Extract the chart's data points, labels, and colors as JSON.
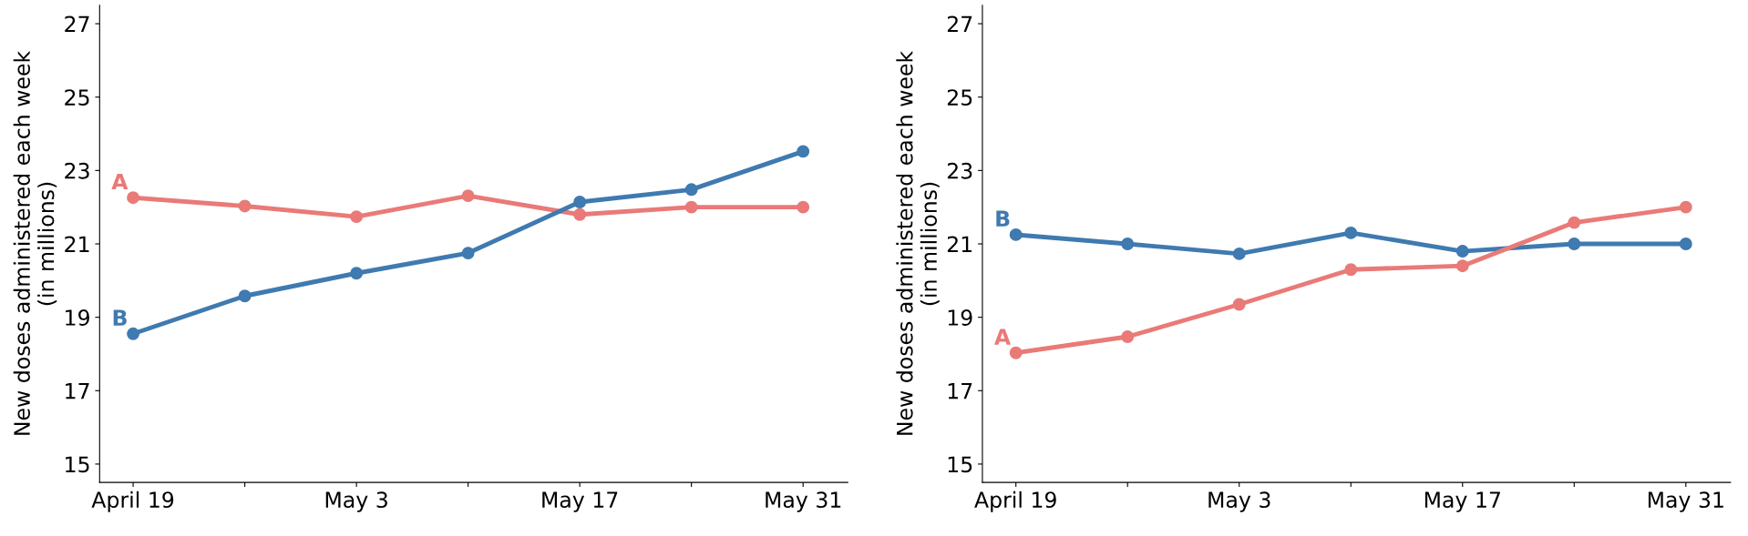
{
  "chart_data": [
    {
      "type": "line",
      "ylabel": "New doses administered each week\n(in millions)",
      "categories": [
        "April 19",
        null,
        "May 3",
        null,
        "May 17",
        null,
        "May 31"
      ],
      "ylim": [
        14.5,
        27.5
      ],
      "yticks": [
        15,
        17,
        19,
        21,
        23,
        25,
        27
      ],
      "marker": "circle",
      "grid": false,
      "legend": false,
      "series": [
        {
          "name": "A",
          "color": "#e97a78",
          "values": [
            22.26,
            22.03,
            21.74,
            22.31,
            21.8,
            22.0,
            22.0
          ]
        },
        {
          "name": "B",
          "color": "#3f7ab0",
          "values": [
            18.55,
            19.58,
            20.2,
            20.75,
            22.14,
            22.48,
            23.52
          ]
        }
      ]
    },
    {
      "type": "line",
      "ylabel": "New doses administered each week\n(in millions)",
      "categories": [
        "April 19",
        null,
        "May 3",
        null,
        "May 17",
        null,
        "May 31"
      ],
      "ylim": [
        14.5,
        27.5
      ],
      "yticks": [
        15,
        17,
        19,
        21,
        23,
        25,
        27
      ],
      "marker": "circle",
      "grid": false,
      "legend": false,
      "series": [
        {
          "name": "B",
          "color": "#3f7ab0",
          "values": [
            21.25,
            21.0,
            20.73,
            21.3,
            20.8,
            21.0,
            21.0
          ]
        },
        {
          "name": "A",
          "color": "#e97a78",
          "values": [
            18.03,
            18.47,
            19.35,
            20.3,
            20.4,
            21.58,
            22.0
          ]
        }
      ]
    }
  ]
}
